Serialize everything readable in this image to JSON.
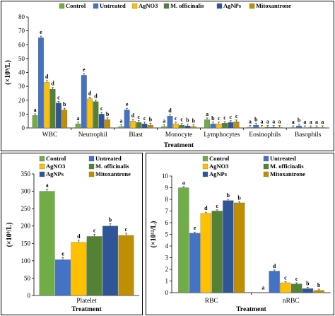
{
  "chart_data": [
    {
      "type": "bar",
      "panel": "top",
      "ylabel": "(×10⁹/L)",
      "xlabel": "Treatment",
      "ylim": [
        0,
        80
      ],
      "yticks": [
        0,
        10,
        20,
        30,
        40,
        50,
        60,
        70,
        80
      ],
      "legend_position": "top",
      "categories": [
        "WBC",
        "Neutrophil",
        "Blast",
        "Monocyte",
        "Lymphocytes",
        "Eosinophils",
        "Basophils"
      ],
      "series": [
        {
          "name": "Control",
          "color": "#70ad47",
          "values": [
            9,
            3,
            1,
            1,
            6,
            0.5,
            0.3
          ],
          "labels": [
            "a",
            "a",
            "a",
            "a",
            "a",
            "a",
            "a"
          ]
        },
        {
          "name": "Untreated",
          "color": "#4472c4",
          "values": [
            65,
            38,
            13,
            8.5,
            3,
            2,
            1.5
          ],
          "labels": [
            "e",
            "e",
            "e",
            "d",
            "b",
            "b",
            "b"
          ]
        },
        {
          "name": "AgNO3",
          "color": "#ffc000",
          "values": [
            33,
            21,
            5,
            3,
            3,
            0.5,
            0.3
          ],
          "labels": [
            "d",
            "d",
            "d",
            "c",
            "c",
            "a",
            "a"
          ]
        },
        {
          "name": "M. officinalis",
          "color": "#548235",
          "values": [
            28,
            19,
            4,
            2,
            3.5,
            0.5,
            0.3
          ],
          "labels": [
            "d",
            "d",
            "c",
            "c",
            "c",
            "a",
            "a"
          ]
        },
        {
          "name": "AgNPs",
          "color": "#2f5597",
          "values": [
            18,
            10,
            3,
            1.5,
            4,
            0.5,
            0.3
          ],
          "labels": [
            "c",
            "c",
            "c",
            "b",
            "c",
            "a",
            "a"
          ]
        },
        {
          "name": "Mitoxantrone",
          "color": "#bf8f00",
          "values": [
            13,
            6,
            2,
            1,
            4.5,
            0.5,
            0.3
          ],
          "labels": [
            "b",
            "b",
            "b",
            "b",
            "c",
            "a",
            "a"
          ]
        }
      ]
    },
    {
      "type": "bar",
      "panel": "bottom-left",
      "ylabel": "(×10⁹/L)",
      "xlabel": "Treatment",
      "ylim": [
        0,
        350
      ],
      "yticks": [
        0,
        50,
        100,
        150,
        200,
        250,
        300,
        350
      ],
      "legend_position": "top",
      "categories": [
        "Platelet"
      ],
      "series": [
        {
          "name": "Control",
          "color": "#70ad47",
          "values": [
            300
          ],
          "labels": [
            "a"
          ]
        },
        {
          "name": "Untreated",
          "color": "#4472c4",
          "values": [
            103
          ],
          "labels": [
            "e"
          ]
        },
        {
          "name": "AgNO3",
          "color": "#ffc000",
          "values": [
            153
          ],
          "labels": [
            "d"
          ]
        },
        {
          "name": "M. officinalis",
          "color": "#548235",
          "values": [
            170
          ],
          "labels": [
            "c"
          ]
        },
        {
          "name": "AgNPs",
          "color": "#2f5597",
          "values": [
            200
          ],
          "labels": [
            "b"
          ]
        },
        {
          "name": "Mitoxantrone",
          "color": "#bf8f00",
          "values": [
            173
          ],
          "labels": [
            "c"
          ]
        }
      ]
    },
    {
      "type": "bar",
      "panel": "bottom-right",
      "ylabel": "(×10¹²/L)",
      "xlabel": "Treatment",
      "ylim": [
        0,
        10
      ],
      "yticks": [
        0,
        1,
        2,
        3,
        4,
        5,
        6,
        7,
        8,
        9,
        10
      ],
      "legend_position": "top",
      "categories": [
        "RBC",
        "nRBC"
      ],
      "series": [
        {
          "name": "Control",
          "color": "#70ad47",
          "values": [
            9,
            0
          ],
          "labels": [
            "a",
            "a"
          ]
        },
        {
          "name": "Untreated",
          "color": "#4472c4",
          "values": [
            5.1,
            1.85
          ],
          "labels": [
            "e",
            "d"
          ]
        },
        {
          "name": "AgNO3",
          "color": "#ffc000",
          "values": [
            6.8,
            0.85
          ],
          "labels": [
            "d",
            "c"
          ]
        },
        {
          "name": "M. officinalis",
          "color": "#548235",
          "values": [
            7,
            0.75
          ],
          "labels": [
            "c",
            "c"
          ]
        },
        {
          "name": "AgNPs",
          "color": "#2f5597",
          "values": [
            7.9,
            0.35
          ],
          "labels": [
            "b",
            "b"
          ]
        },
        {
          "name": "Mitoxantrone",
          "color": "#bf8f00",
          "values": [
            7.7,
            0.2
          ],
          "labels": [
            "b",
            "b"
          ]
        }
      ]
    }
  ]
}
